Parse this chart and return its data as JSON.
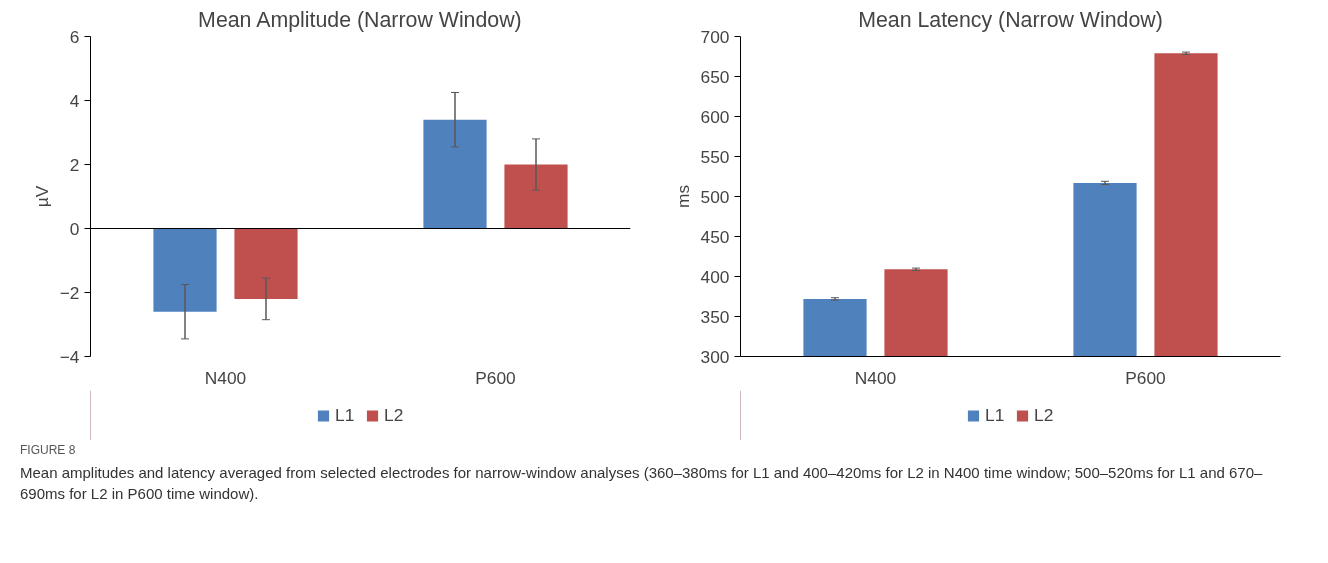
{
  "chart_data": [
    {
      "type": "bar",
      "title": "Mean Amplitude (Narrow Window)",
      "ylabel": "µV",
      "categories": [
        "N400",
        "P600"
      ],
      "series": [
        {
          "name": "L1",
          "color": "#4f81bd",
          "values": [
            -2.6,
            3.4
          ],
          "errors": [
            0.85,
            0.85
          ]
        },
        {
          "name": "L2",
          "color": "#c0504d",
          "values": [
            -2.2,
            2.0
          ],
          "errors": [
            0.65,
            0.8
          ]
        }
      ],
      "ylim": [
        -4,
        6
      ],
      "yticks": [
        -4,
        -2,
        0,
        2,
        4,
        6
      ],
      "legend": "bottom",
      "annotations": [
        "FIGURE 8",
        "Mean amplitudes and latency averaged from selected electrodes for narrow-window analyses (360–380ms for L1 and 400–420ms for L2 in N400 time window; 500–520ms for L1 and 670–690ms for L2 in P600 time window)."
      ]
    },
    {
      "type": "bar",
      "title": "Mean Latency (Narrow Window)",
      "ylabel": "ms",
      "categories": [
        "N400",
        "P600"
      ],
      "series": [
        {
          "name": "L1",
          "color": "#4f81bd",
          "values": [
            372,
            517
          ],
          "errors": [
            1.5,
            2
          ]
        },
        {
          "name": "L2",
          "color": "#c0504d",
          "values": [
            409,
            679
          ],
          "errors": [
            1.5,
            1.5
          ]
        }
      ],
      "ylim": [
        300,
        700
      ],
      "yticks": [
        300,
        350,
        400,
        450,
        500,
        550,
        600,
        650,
        700
      ],
      "legend": "bottom"
    }
  ]
}
